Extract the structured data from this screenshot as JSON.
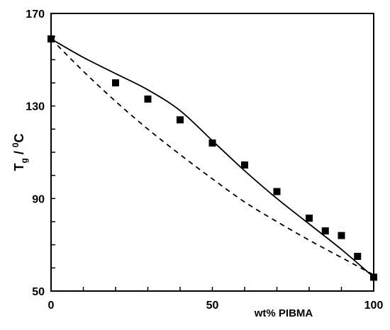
{
  "chart_data": {
    "type": "scatter",
    "xlabel": "wt% PIBMA",
    "ylabel_main": "T",
    "ylabel_sub": "g",
    "ylabel_sep": " / ",
    "ylabel_sup": "0",
    "ylabel_unit": "C",
    "xlim": [
      0,
      100
    ],
    "ylim": [
      50,
      170
    ],
    "x_ticks": [
      0,
      50,
      100
    ],
    "y_ticks": [
      50,
      90,
      130,
      170
    ],
    "grid": false,
    "series": [
      {
        "style": "markers",
        "marker": "filled-square",
        "color": "#000000",
        "x": [
          0,
          20,
          30,
          40,
          50,
          60,
          70,
          80,
          85,
          90,
          95,
          100
        ],
        "y": [
          159,
          140,
          133,
          124,
          114,
          104.5,
          93,
          81.5,
          76,
          74,
          65,
          56
        ]
      },
      {
        "style": "solid-line",
        "color": "#000000",
        "x": [
          0,
          10,
          20,
          30,
          40,
          50,
          60,
          70,
          80,
          90,
          100
        ],
        "y": [
          159,
          151,
          144,
          137,
          128,
          115,
          102,
          90,
          79,
          68,
          56
        ]
      },
      {
        "style": "dashed-line",
        "color": "#000000",
        "x": [
          0,
          10,
          20,
          30,
          40,
          50,
          60,
          70,
          80,
          90,
          100
        ],
        "y": [
          159,
          145,
          132,
          120,
          109,
          98.5,
          88.5,
          80,
          72,
          64.5,
          57
        ]
      }
    ]
  }
}
